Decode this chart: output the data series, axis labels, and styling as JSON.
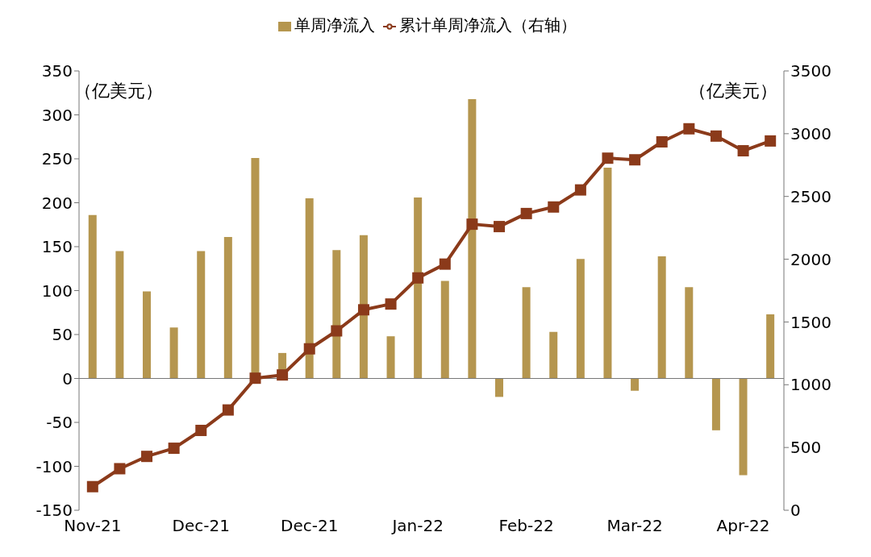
{
  "chart_data": {
    "type": "bar",
    "categories": [
      "Nov-21",
      null,
      null,
      null,
      "Dec-21",
      null,
      null,
      null,
      "Dec-21",
      null,
      null,
      null,
      "Jan-22",
      null,
      null,
      null,
      "Feb-22",
      null,
      null,
      null,
      "Mar-22",
      null,
      null,
      null,
      "Apr-22",
      null
    ],
    "series": [
      {
        "name": "单周净流入",
        "color": "#b5964f",
        "values": [
          186,
          145,
          99,
          58,
          145,
          161,
          251,
          29,
          205,
          146,
          163,
          48,
          206,
          111,
          318,
          -21,
          104,
          53,
          136,
          240,
          -14,
          139,
          104,
          -59,
          -110,
          73
        ]
      },
      {
        "name": "累计单周净流入（右轴）",
        "type": "line",
        "axis": "y2",
        "color": "#8b3a1a",
        "marker": "square",
        "values": [
          188,
          331,
          429,
          494,
          636,
          799,
          1052,
          1078,
          1286,
          1429,
          1597,
          1643,
          1851,
          1961,
          2279,
          2260,
          2364,
          2416,
          2552,
          2805,
          2792,
          2935,
          3039,
          2981,
          2864,
          2942
        ]
      }
    ],
    "ylim": [
      -150,
      350
    ],
    "yticks": [
      -150,
      -100,
      -50,
      0,
      50,
      100,
      150,
      200,
      250,
      300,
      350
    ],
    "y2lim": [
      0,
      3500
    ],
    "y2ticks": [
      0,
      500,
      1000,
      1500,
      2000,
      2500,
      3000,
      3500
    ],
    "annotations": [
      "（亿美元）",
      "（亿美元）"
    ],
    "ref_lines": [
      {
        "axis": "y",
        "value": 0
      }
    ],
    "legend": "top",
    "grid": false
  }
}
